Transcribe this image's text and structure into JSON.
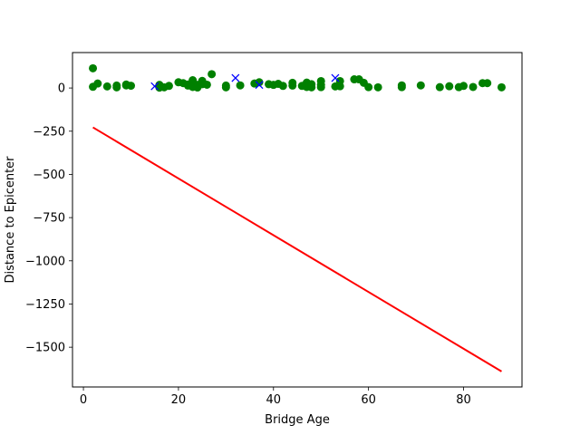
{
  "chart_data": {
    "type": "scatter",
    "title": "",
    "xlabel": "Bridge Age",
    "ylabel": "Distance to Epicenter",
    "xlim": [
      -2.3,
      92.3
    ],
    "ylim": [
      -1730,
      205
    ],
    "x_ticks": [
      0,
      20,
      40,
      60,
      80
    ],
    "y_ticks": [
      0,
      -250,
      -500,
      -750,
      -1000,
      -1250,
      -1500
    ],
    "x_tick_labels": [
      "0",
      "20",
      "40",
      "60",
      "80"
    ],
    "y_tick_labels": [
      "0",
      "−250",
      "−500",
      "−750",
      "−1000",
      "−1250",
      "−1500"
    ],
    "grid": false,
    "colors": {
      "points": "#008000",
      "crosses": "#0000ff",
      "line": "#ff0000"
    },
    "series": [
      {
        "marker": "circle",
        "color": "#008000",
        "points": [
          [
            2,
            114
          ],
          [
            2,
            7
          ],
          [
            3,
            26
          ],
          [
            5,
            9
          ],
          [
            7,
            14
          ],
          [
            7,
            4
          ],
          [
            9,
            20
          ],
          [
            9,
            15
          ],
          [
            10,
            13
          ],
          [
            16,
            18
          ],
          [
            16,
            6
          ],
          [
            16,
            2
          ],
          [
            17,
            4
          ],
          [
            18,
            12
          ],
          [
            20,
            33
          ],
          [
            21,
            28
          ],
          [
            22,
            20
          ],
          [
            22,
            14
          ],
          [
            23,
            6
          ],
          [
            23,
            45
          ],
          [
            24,
            9
          ],
          [
            24,
            18
          ],
          [
            24,
            3
          ],
          [
            25,
            41
          ],
          [
            25,
            22
          ],
          [
            26,
            19
          ],
          [
            27,
            80
          ],
          [
            30,
            14
          ],
          [
            30,
            4
          ],
          [
            33,
            15
          ],
          [
            36,
            26
          ],
          [
            37,
            33
          ],
          [
            39,
            22
          ],
          [
            40,
            18
          ],
          [
            41,
            24
          ],
          [
            42,
            12
          ],
          [
            44,
            30
          ],
          [
            44,
            14
          ],
          [
            46,
            12
          ],
          [
            47,
            31
          ],
          [
            47,
            6
          ],
          [
            48,
            22
          ],
          [
            48,
            4
          ],
          [
            50,
            40
          ],
          [
            50,
            18
          ],
          [
            50,
            5
          ],
          [
            53,
            9
          ],
          [
            54,
            40
          ],
          [
            54,
            10
          ],
          [
            57,
            50
          ],
          [
            58,
            50
          ],
          [
            59,
            30
          ],
          [
            60,
            5
          ],
          [
            62,
            4
          ],
          [
            67,
            15
          ],
          [
            67,
            5
          ],
          [
            71,
            15
          ],
          [
            75,
            5
          ],
          [
            77,
            10
          ],
          [
            79,
            5
          ],
          [
            80,
            12
          ],
          [
            82,
            6
          ],
          [
            84,
            28
          ],
          [
            85,
            28
          ],
          [
            88,
            4
          ]
        ]
      },
      {
        "marker": "x",
        "color": "#0000ff",
        "points": [
          [
            15,
            10
          ],
          [
            32,
            58
          ],
          [
            37,
            18
          ],
          [
            53,
            58
          ]
        ]
      },
      {
        "marker": "line",
        "color": "#ff0000",
        "points": [
          [
            2,
            -228
          ],
          [
            88,
            -1640
          ]
        ]
      }
    ]
  }
}
